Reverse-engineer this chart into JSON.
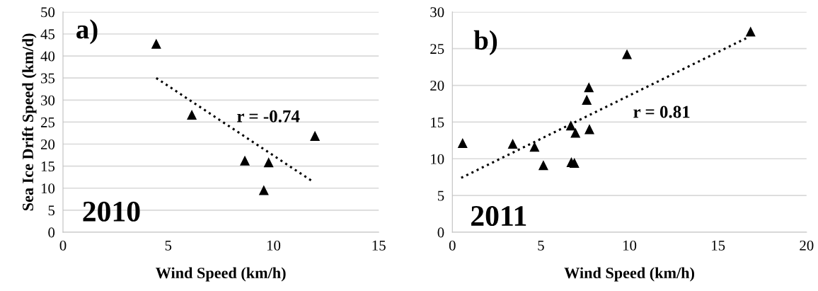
{
  "chart_data": [
    {
      "type": "scatter",
      "xlabel": "Wind Speed (km/h)",
      "ylabel": "Sea Ice Drift Speed (km/d)",
      "xlim": [
        0,
        15
      ],
      "xticks": [
        0,
        5,
        10,
        15
      ],
      "ylim": [
        0,
        50
      ],
      "yticks": [
        0,
        5,
        10,
        15,
        20,
        25,
        30,
        35,
        40,
        45,
        50
      ],
      "grid": "y",
      "marker": "triangle",
      "annotations": [
        "a)",
        "2010",
        "r = -0.74"
      ],
      "series": [
        {
          "color": "#000000",
          "x": [
            4.43,
            6.12,
            8.64,
            9.77,
            9.54,
            11.97
          ],
          "values": [
            42.7,
            26.6,
            16.2,
            15.8,
            9.5,
            21.8
          ]
        },
        {
          "type": "line",
          "line_style": "dotted",
          "marker": "none",
          "color": "#000000",
          "x": [
            4.43,
            11.9
          ],
          "values": [
            35.0,
            11.4
          ]
        }
      ]
    },
    {
      "type": "scatter",
      "xlabel": "Wind Speed (km/h)",
      "xlim": [
        0,
        20
      ],
      "xticks": [
        0,
        5,
        10,
        15,
        20
      ],
      "ylim": [
        0,
        30
      ],
      "yticks": [
        0,
        5,
        10,
        15,
        20,
        25,
        30
      ],
      "grid": "y",
      "marker": "triangle",
      "annotations": [
        "b)",
        "2011",
        "r = 0.81"
      ],
      "series": [
        {
          "color": "#000000",
          "x": [
            0.58,
            3.41,
            4.64,
            5.14,
            6.69,
            6.72,
            6.89,
            6.95,
            7.59,
            7.71,
            7.74,
            9.86,
            16.84
          ],
          "values": [
            12.1,
            12.0,
            11.6,
            9.1,
            14.5,
            9.5,
            9.4,
            13.5,
            18.0,
            19.7,
            14.0,
            24.2,
            27.3
          ]
        },
        {
          "type": "line",
          "line_style": "dotted",
          "marker": "none",
          "color": "#000000",
          "x": [
            0.5,
            16.66
          ],
          "values": [
            7.4,
            26.5
          ]
        }
      ]
    }
  ]
}
